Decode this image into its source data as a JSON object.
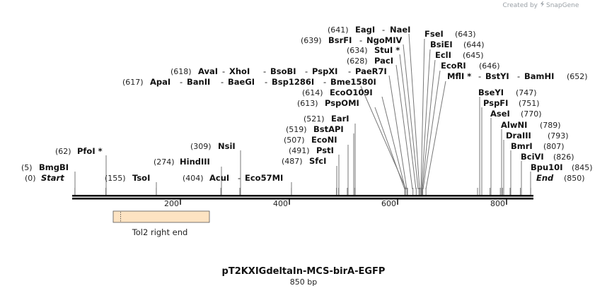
{
  "credit": {
    "text": "Created by",
    "brand": "SnapGene"
  },
  "title": "pT2KXIGdeltaIn-MCS-birA-EGFP",
  "length_label": "850 bp",
  "ruler": {
    "ticks": [
      "200",
      "400",
      "600",
      "800"
    ]
  },
  "feature": {
    "label": "Tol2 right end",
    "start": 76,
    "end": 253,
    "color": "#fde3c2"
  },
  "ends": [
    {
      "num": "(0)",
      "name": "Start",
      "pos": 0
    },
    {
      "num": "(850)",
      "name": "End",
      "pos": 850
    }
  ],
  "sites": [
    {
      "id": "bmgbi",
      "num": "(5)",
      "name": "BmgBI",
      "pos": 5
    },
    {
      "id": "pfoi",
      "num": "(62)",
      "name": "PfoI *",
      "pos": 62
    },
    {
      "id": "tsoi",
      "num": "(155)",
      "name": "TsoI",
      "pos": 155
    },
    {
      "id": "hindiii",
      "num": "(274)",
      "name": "HindIII",
      "pos": 274
    },
    {
      "id": "nsii",
      "num": "(309)",
      "name": "NsiI",
      "pos": 309
    },
    {
      "id": "acui",
      "num": "(404)",
      "name": "AcuI",
      "pos": 404,
      "extra": "Eco57MI"
    },
    {
      "id": "sfci",
      "num": "(487)",
      "name": "SfcI",
      "pos": 487
    },
    {
      "id": "psti",
      "num": "(491)",
      "name": "PstI",
      "pos": 491
    },
    {
      "id": "econi",
      "num": "(507)",
      "name": "EcoNI",
      "pos": 507
    },
    {
      "id": "bstapi",
      "num": "(519)",
      "name": "BstAPI",
      "pos": 519
    },
    {
      "id": "eari",
      "num": "(521)",
      "name": "EarI",
      "pos": 521
    },
    {
      "id": "pspomi",
      "num": "(613)",
      "name": "PspOMI",
      "pos": 613
    },
    {
      "id": "ecoo109i",
      "num": "(614)",
      "name": "EcoO109I",
      "pos": 614
    },
    {
      "id": "apai",
      "num": "(617)",
      "name": "ApaI",
      "pos": 617,
      "extras": [
        "BanII",
        "BaeGI",
        "Bsp1286I",
        "Bme1580I"
      ]
    },
    {
      "id": "avai",
      "num": "(618)",
      "name": "AvaI",
      "pos": 618,
      "extras": [
        "XhoI",
        "BsoBI",
        "PspXI",
        "PaeR7I"
      ]
    },
    {
      "id": "paci",
      "num": "(628)",
      "name": "PacI",
      "pos": 628
    },
    {
      "id": "stui",
      "num": "(634)",
      "name": "StuI *",
      "pos": 634
    },
    {
      "id": "bsrfi",
      "num": "(639)",
      "name": "BsrFI",
      "pos": 639,
      "extras": [
        "NgoMIV"
      ]
    },
    {
      "id": "eagi",
      "num": "(641)",
      "name": "EagI",
      "pos": 641,
      "extras": [
        "NaeI"
      ]
    },
    {
      "id": "fsei",
      "num": "(643)",
      "name": "FseI",
      "pos": 643
    },
    {
      "id": "bsiei",
      "num": "(644)",
      "name": "BsiEI",
      "pos": 644
    },
    {
      "id": "ecli",
      "num": "(645)",
      "name": "EclI",
      "pos": 645
    },
    {
      "id": "ecori",
      "num": "(646)",
      "name": "EcoRI",
      "pos": 646
    },
    {
      "id": "mfli",
      "num": "(652)",
      "name": "MflI *",
      "pos": 652,
      "extras": [
        "BstYI",
        "BamHI"
      ]
    },
    {
      "id": "bseyi",
      "num": "(747)",
      "name": "BseYI",
      "pos": 747
    },
    {
      "id": "pspfi",
      "num": "(751)",
      "name": "PspFI",
      "pos": 751
    },
    {
      "id": "asei",
      "num": "(770)",
      "name": "AseI",
      "pos": 770
    },
    {
      "id": "alwni",
      "num": "(789)",
      "name": "AlwNI",
      "pos": 789
    },
    {
      "id": "draiii",
      "num": "(793)",
      "name": "DraIII",
      "pos": 793
    },
    {
      "id": "bmri",
      "num": "(807)",
      "name": "BmrI",
      "pos": 807
    },
    {
      "id": "bcivi",
      "num": "(826)",
      "name": "BciVI",
      "pos": 826
    },
    {
      "id": "bpu10i",
      "num": "(845)",
      "name": "Bpu10I",
      "pos": 845
    }
  ]
}
